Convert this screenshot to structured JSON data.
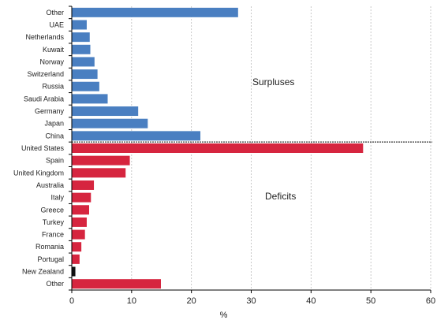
{
  "chart_data": {
    "type": "bar",
    "orientation": "horizontal",
    "xlabel": "%",
    "xlim": [
      0,
      60
    ],
    "xticks": [
      0,
      10,
      20,
      30,
      40,
      50,
      60
    ],
    "grid": "vertical dotted",
    "colors": {
      "surplus": "#4a7fc1",
      "deficit": "#d6253f",
      "highlight": "#111111"
    },
    "annotations": {
      "surpluses": "Surpluses",
      "deficits": "Deficits"
    },
    "series": [
      {
        "group": "surplus",
        "categories": [
          "Other",
          "UAE",
          "Netherlands",
          "Kuwait",
          "Norway",
          "Switzerland",
          "Russia",
          "Saudi Arabia",
          "Germany",
          "Japan",
          "China"
        ],
        "values": [
          27.8,
          2.5,
          3.0,
          3.1,
          3.8,
          4.3,
          4.6,
          6.0,
          11.1,
          12.7,
          21.5
        ]
      },
      {
        "group": "deficit",
        "categories": [
          "United States",
          "Spain",
          "United Kingdom",
          "Australia",
          "Italy",
          "Greece",
          "Turkey",
          "France",
          "Romania",
          "Portugal",
          "New Zealand",
          "Other"
        ],
        "values": [
          48.7,
          9.7,
          9.0,
          3.7,
          3.2,
          2.9,
          2.5,
          2.2,
          1.6,
          1.3,
          0.6,
          14.9
        ]
      }
    ]
  }
}
